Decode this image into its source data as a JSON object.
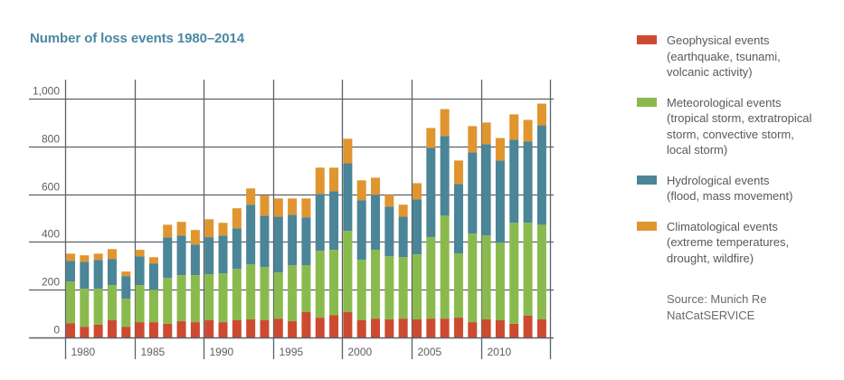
{
  "chart_data": {
    "type": "bar",
    "stacked": true,
    "title": "Number of loss events 1980–2014",
    "xlabel": "",
    "ylabel": "",
    "ylim": [
      0,
      1000
    ],
    "yticks": [
      0,
      200,
      400,
      600,
      800,
      1000
    ],
    "ytick_labels": [
      "0",
      "200",
      "400",
      "600",
      "800",
      "1,000"
    ],
    "xtick_labels": [
      "1980",
      "1985",
      "1990",
      "1995",
      "2000",
      "2005",
      "2010"
    ],
    "grid": true,
    "legend_position": "right",
    "categories": [
      1980,
      1981,
      1982,
      1983,
      1984,
      1985,
      1986,
      1987,
      1988,
      1989,
      1990,
      1991,
      1992,
      1993,
      1994,
      1995,
      1996,
      1997,
      1998,
      1999,
      2000,
      2001,
      2002,
      2003,
      2004,
      2005,
      2006,
      2007,
      2008,
      2009,
      2010,
      2011,
      2012,
      2013,
      2014
    ],
    "series": [
      {
        "name": "Geophysical events",
        "description": [
          "(earthquake, tsunami,",
          "volcanic activity)"
        ],
        "color": "#cd4a30",
        "values": [
          60,
          45,
          53,
          72,
          45,
          64,
          64,
          57,
          68,
          64,
          72,
          64,
          72,
          76,
          72,
          79,
          68,
          106,
          83,
          94,
          106,
          72,
          79,
          76,
          79,
          76,
          79,
          79,
          83,
          64,
          76,
          72,
          57,
          91,
          76
        ]
      },
      {
        "name": "Meteorological events",
        "description": [
          "(tropical storm, extratropical",
          "storm, convective storm,",
          "local storm)"
        ],
        "color": "#8aba4d",
        "values": [
          174,
          159,
          151,
          147,
          118,
          155,
          136,
          192,
          193,
          197,
          193,
          204,
          215,
          230,
          223,
          193,
          234,
          196,
          280,
          273,
          340,
          253,
          288,
          264,
          257,
          272,
          341,
          431,
          269,
          371,
          351,
          325,
          423,
          389,
          396
        ]
      },
      {
        "name": "Hydrological events",
        "description": [
          "(flood, mass movement)"
        ],
        "color": "#4a8598",
        "values": [
          87,
          113,
          121,
          110,
          94,
          121,
          110,
          170,
          166,
          128,
          155,
          159,
          170,
          250,
          215,
          234,
          212,
          201,
          238,
          245,
          283,
          250,
          230,
          208,
          170,
          230,
          374,
          333,
          291,
          340,
          382,
          344,
          348,
          340,
          416
        ]
      },
      {
        "name": "Climatological events",
        "description": [
          "(extreme temperatures,",
          "drought, wildfire)"
        ],
        "color": "#e0952f",
        "values": [
          30,
          27,
          26,
          41,
          19,
          27,
          26,
          53,
          57,
          61,
          75,
          53,
          84,
          68,
          84,
          76,
          68,
          79,
          110,
          99,
          103,
          83,
          72,
          49,
          50,
          68,
          83,
          113,
          98,
          110,
          91,
          94,
          106,
          91,
          91
        ]
      }
    ],
    "source": [
      "Source: Munich Re",
      "NatCatSERVICE"
    ]
  }
}
